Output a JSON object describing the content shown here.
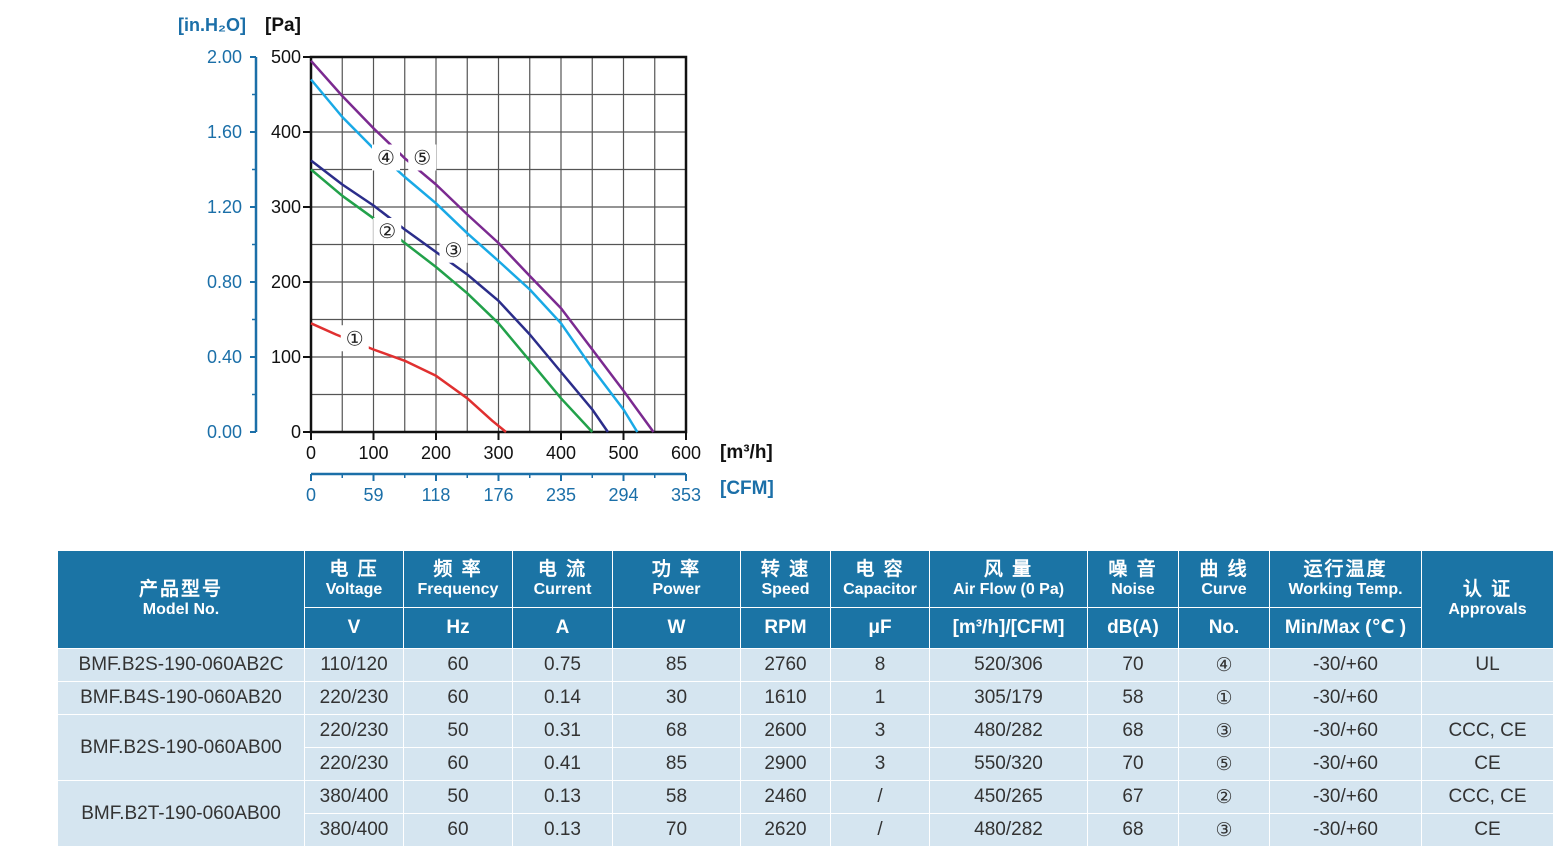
{
  "chart_data": {
    "type": "line",
    "x_unit_top": "[m³/h]",
    "x_unit_bottom": "[CFM]",
    "y_unit_left": "[in.H₂O]",
    "y_unit_right": "[Pa]",
    "x_ticks": [
      "0",
      "100",
      "200",
      "300",
      "400",
      "500",
      "600"
    ],
    "x_ticks_cfm": [
      "0",
      "59",
      "118",
      "176",
      "235",
      "294",
      "353"
    ],
    "y_ticks": [
      "0",
      "100",
      "200",
      "300",
      "400",
      "500"
    ],
    "y_ticks_inh2o": [
      "0.00",
      "0.40",
      "0.80",
      "1.20",
      "1.60",
      "2.00"
    ],
    "xlim": [
      0,
      600
    ],
    "ylim": [
      0,
      500
    ],
    "grid": true,
    "series": [
      {
        "name": "①",
        "color": "#e03030",
        "label_at": [
          70,
          125
        ],
        "points": [
          [
            0,
            145
          ],
          [
            40,
            130
          ],
          [
            100,
            110
          ],
          [
            150,
            95
          ],
          [
            200,
            75
          ],
          [
            250,
            45
          ],
          [
            290,
            15
          ],
          [
            312,
            0
          ]
        ]
      },
      {
        "name": "②",
        "color": "#22a14a",
        "label_at": [
          122,
          268
        ],
        "points": [
          [
            0,
            350
          ],
          [
            50,
            315
          ],
          [
            100,
            285
          ],
          [
            150,
            252
          ],
          [
            200,
            220
          ],
          [
            250,
            185
          ],
          [
            300,
            145
          ],
          [
            350,
            95
          ],
          [
            400,
            45
          ],
          [
            450,
            0
          ]
        ]
      },
      {
        "name": "③",
        "color": "#2b2d8a",
        "label_at": [
          228,
          243
        ],
        "points": [
          [
            0,
            362
          ],
          [
            50,
            330
          ],
          [
            100,
            302
          ],
          [
            150,
            270
          ],
          [
            200,
            240
          ],
          [
            250,
            210
          ],
          [
            300,
            175
          ],
          [
            350,
            130
          ],
          [
            400,
            80
          ],
          [
            450,
            30
          ],
          [
            475,
            0
          ]
        ]
      },
      {
        "name": "④",
        "color": "#19a9e6",
        "label_at": [
          120,
          366
        ],
        "points": [
          [
            0,
            470
          ],
          [
            50,
            420
          ],
          [
            100,
            378
          ],
          [
            150,
            340
          ],
          [
            200,
            305
          ],
          [
            250,
            265
          ],
          [
            300,
            228
          ],
          [
            350,
            190
          ],
          [
            400,
            145
          ],
          [
            450,
            85
          ],
          [
            500,
            30
          ],
          [
            522,
            0
          ]
        ]
      },
      {
        "name": "⑤",
        "color": "#7b2a90",
        "label_at": [
          178,
          366
        ],
        "points": [
          [
            0,
            495
          ],
          [
            50,
            448
          ],
          [
            100,
            405
          ],
          [
            150,
            365
          ],
          [
            200,
            330
          ],
          [
            250,
            290
          ],
          [
            300,
            252
          ],
          [
            350,
            208
          ],
          [
            400,
            165
          ],
          [
            450,
            110
          ],
          [
            500,
            55
          ],
          [
            548,
            0
          ]
        ]
      }
    ]
  },
  "table": {
    "header_top": [
      {
        "cn": "产品型号",
        "en": "Model No."
      },
      {
        "cn": "电 压",
        "en": "Voltage"
      },
      {
        "cn": "频 率",
        "en": "Frequency"
      },
      {
        "cn": "电 流",
        "en": "Current"
      },
      {
        "cn": "功 率",
        "en": "Power"
      },
      {
        "cn": "转 速",
        "en": "Speed"
      },
      {
        "cn": "电 容",
        "en": "Capacitor"
      },
      {
        "cn": "风 量",
        "en": "Air Flow (0 Pa)"
      },
      {
        "cn": "噪 音",
        "en": "Noise"
      },
      {
        "cn": "曲 线",
        "en": "Curve"
      },
      {
        "cn": "运行温度",
        "en": "Working Temp."
      },
      {
        "cn": "认 证",
        "en": "Approvals"
      }
    ],
    "units": [
      "V",
      "Hz",
      "A",
      "W",
      "RPM",
      "μF",
      "[m³/h]/[CFM]",
      "dB(A)",
      "No.",
      "Min/Max (℃ )"
    ],
    "groups": [
      {
        "model": "BMF.B2S-190-060AB2C",
        "rows": [
          {
            "voltage": "110/120",
            "freq": "60",
            "current": "0.75",
            "power": "85",
            "speed": "2760",
            "cap": "8",
            "flow": "520/306",
            "noise": "70",
            "curve": "④",
            "temp": "-30/+60",
            "approval": "UL"
          }
        ]
      },
      {
        "model": "BMF.B4S-190-060AB20",
        "rows": [
          {
            "voltage": "220/230",
            "freq": "60",
            "current": "0.14",
            "power": "30",
            "speed": "1610",
            "cap": "1",
            "flow": "305/179",
            "noise": "58",
            "curve": "①",
            "temp": "-30/+60",
            "approval": ""
          }
        ]
      },
      {
        "model": "BMF.B2S-190-060AB00",
        "rows": [
          {
            "voltage": "220/230",
            "freq": "50",
            "current": "0.31",
            "power": "68",
            "speed": "2600",
            "cap": "3",
            "flow": "480/282",
            "noise": "68",
            "curve": "③",
            "temp": "-30/+60",
            "approval": "CCC, CE"
          },
          {
            "voltage": "220/230",
            "freq": "60",
            "current": "0.41",
            "power": "85",
            "speed": "2900",
            "cap": "3",
            "flow": "550/320",
            "noise": "70",
            "curve": "⑤",
            "temp": "-30/+60",
            "approval": "CE"
          }
        ]
      },
      {
        "model": "BMF.B2T-190-060AB00",
        "rows": [
          {
            "voltage": "380/400",
            "freq": "50",
            "current": "0.13",
            "power": "58",
            "speed": "2460",
            "cap": "/",
            "flow": "450/265",
            "noise": "67",
            "curve": "②",
            "temp": "-30/+60",
            "approval": "CCC, CE"
          },
          {
            "voltage": "380/400",
            "freq": "60",
            "current": "0.13",
            "power": "70",
            "speed": "2620",
            "cap": "/",
            "flow": "480/282",
            "noise": "68",
            "curve": "③",
            "temp": "-30/+60",
            "approval": "CE"
          }
        ]
      }
    ]
  }
}
